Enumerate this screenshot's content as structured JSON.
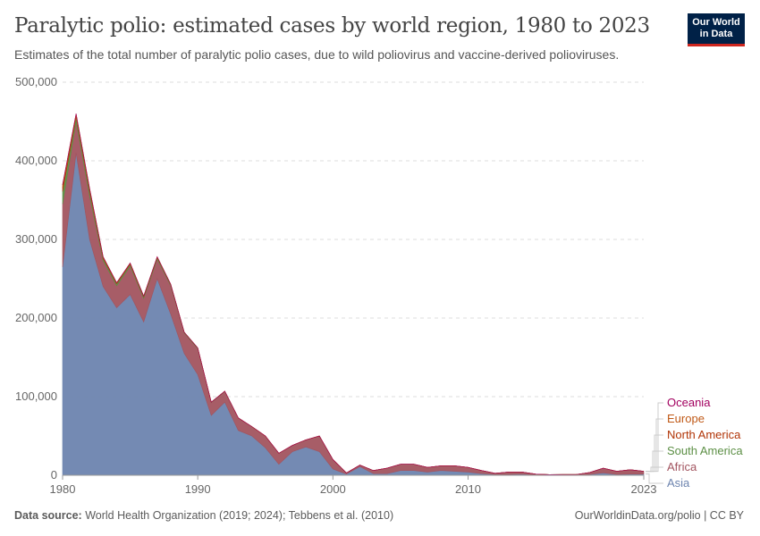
{
  "header": {
    "title": "Paralytic polio: estimated cases by world region, 1980 to 2023",
    "subtitle": "Estimates of the total number of paralytic polio cases, due to wild poliovirus and vaccine-derived polioviruses.",
    "logo": "Our World in Data"
  },
  "footer": {
    "source_label": "Data source:",
    "source": "World Health Organization (2019; 2024); Tebbens et al. (2010)",
    "url": "OurWorldinData.org/polio | CC BY"
  },
  "chart_data": {
    "type": "area",
    "stacked": true,
    "title": "Paralytic polio: estimated cases by world region, 1980 to 2023",
    "ylim": [
      0,
      500000
    ],
    "yticks": [
      0,
      100000,
      200000,
      300000,
      400000,
      500000
    ],
    "ytick_labels": [
      "0",
      "100,000",
      "200,000",
      "300,000",
      "400,000",
      "500,000"
    ],
    "xtick_labels": [
      "1980",
      "1990",
      "2000",
      "2010",
      "2023"
    ],
    "grid": true,
    "legend": "right",
    "x": [
      1980,
      1981,
      1982,
      1983,
      1984,
      1985,
      1986,
      1987,
      1988,
      1989,
      1990,
      1991,
      1992,
      1993,
      1994,
      1995,
      1996,
      1997,
      1998,
      1999,
      2000,
      2001,
      2002,
      2003,
      2004,
      2005,
      2006,
      2007,
      2008,
      2009,
      2010,
      2011,
      2012,
      2013,
      2014,
      2015,
      2016,
      2017,
      2018,
      2019,
      2020,
      2021,
      2022,
      2023
    ],
    "series": [
      {
        "name": "Asia",
        "color": "#6d84af",
        "values": [
          265000,
          410000,
          300000,
          240000,
          213000,
          230000,
          195000,
          250000,
          205000,
          155000,
          128000,
          76000,
          93000,
          57000,
          50000,
          35000,
          14000,
          30000,
          36000,
          30000,
          8000,
          1500,
          11000,
          2000,
          2000,
          6000,
          6000,
          4000,
          6000,
          5000,
          4000,
          2000,
          1000,
          1000,
          1500,
          500,
          500,
          300,
          300,
          1000,
          3000,
          1000,
          1500,
          1500
        ]
      },
      {
        "name": "Africa",
        "color": "#a2545f",
        "values": [
          80000,
          40000,
          55000,
          33000,
          28000,
          36000,
          30000,
          25000,
          36000,
          26000,
          33000,
          16500,
          13500,
          15800,
          11800,
          14800,
          13900,
          7950,
          8950,
          19950,
          11990,
          1500,
          2000,
          4000,
          7000,
          8000,
          8000,
          6000,
          6000,
          7000,
          6000,
          4000,
          1500,
          3000,
          2500,
          1000,
          300,
          700,
          700,
          2500,
          6000,
          4000,
          5500,
          3500
        ]
      },
      {
        "name": "South America",
        "color": "#5c8f45",
        "values": [
          16000,
          6000,
          6000,
          3000,
          2500,
          2500,
          2000,
          2000,
          1500,
          800,
          800,
          400,
          400,
          100,
          100,
          100,
          50,
          0,
          0,
          0,
          0,
          0,
          0,
          0,
          0,
          0,
          0,
          0,
          0,
          0,
          0,
          0,
          0,
          0,
          0,
          0,
          0,
          0,
          0,
          0,
          0,
          0,
          0,
          0
        ]
      },
      {
        "name": "North America",
        "color": "#b13507",
        "values": [
          5000,
          2500,
          2500,
          1300,
          1000,
          1000,
          800,
          700,
          400,
          150,
          150,
          80,
          80,
          80,
          80,
          80,
          40,
          40,
          40,
          40,
          10,
          0,
          0,
          0,
          0,
          0,
          0,
          0,
          0,
          0,
          0,
          0,
          0,
          0,
          0,
          0,
          0,
          0,
          0,
          0,
          0,
          0,
          0,
          0
        ]
      },
      {
        "name": "Europe",
        "color": "#c05917",
        "values": [
          3500,
          1400,
          1400,
          600,
          500,
          500,
          200,
          300,
          150,
          50,
          50,
          20,
          20,
          20,
          20,
          20,
          10,
          10,
          10,
          10,
          0,
          0,
          0,
          0,
          0,
          0,
          0,
          0,
          0,
          0,
          0,
          0,
          0,
          0,
          0,
          0,
          0,
          0,
          0,
          0,
          0,
          0,
          0,
          0
        ]
      },
      {
        "name": "Oceania",
        "color": "#a2005f",
        "values": [
          500,
          100,
          100,
          0,
          0,
          0,
          0,
          0,
          0,
          0,
          0,
          0,
          0,
          0,
          0,
          0,
          0,
          0,
          0,
          0,
          0,
          0,
          0,
          0,
          0,
          0,
          0,
          0,
          0,
          0,
          0,
          0,
          0,
          0,
          0,
          0,
          0,
          0,
          0,
          0,
          0,
          0,
          0,
          0
        ]
      }
    ]
  }
}
